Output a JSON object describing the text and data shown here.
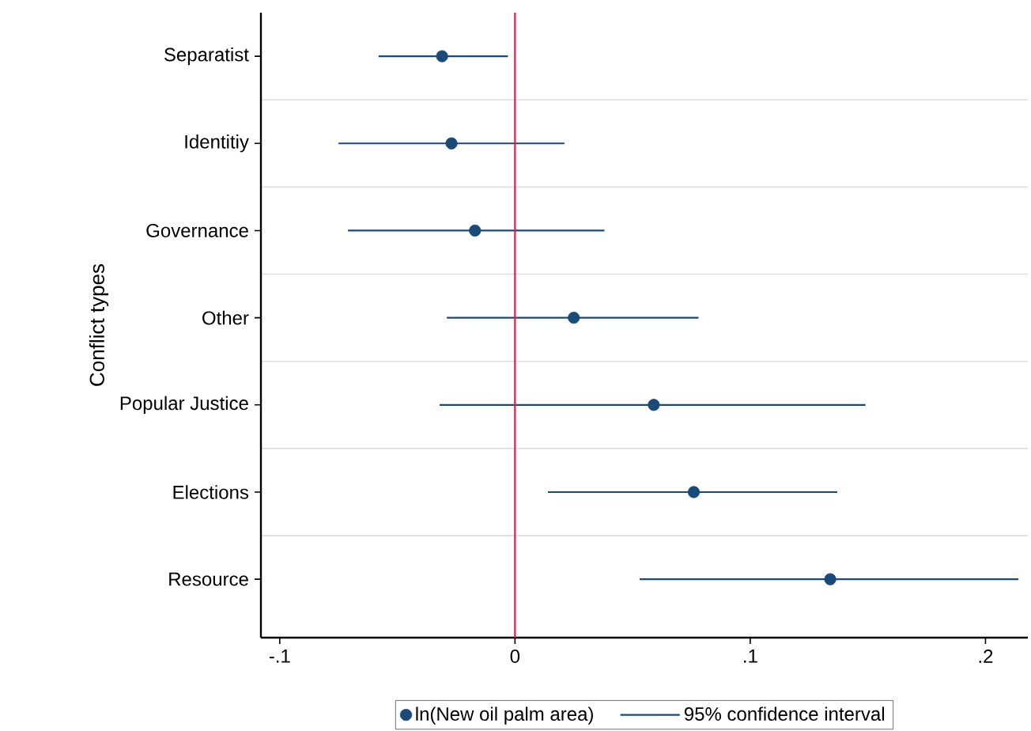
{
  "chart_data": {
    "type": "scatter",
    "orientation": "horizontal",
    "ylabel": "Conflict types",
    "categories": [
      "Separatist",
      "Identitiy",
      "Governance",
      "Other",
      "Popular Justice",
      "Elections",
      "Resource"
    ],
    "series": [
      {
        "name": "ln(New oil palm area)",
        "color": "#1a4a7a",
        "values": [
          -0.031,
          -0.027,
          -0.017,
          0.025,
          0.059,
          0.076,
          0.134
        ],
        "errors": [
          [
            -0.058,
            -0.003
          ],
          [
            -0.075,
            0.021
          ],
          [
            -0.071,
            0.038
          ],
          [
            -0.029,
            0.078
          ],
          [
            -0.032,
            0.149
          ],
          [
            0.014,
            0.137
          ],
          [
            0.053,
            0.214
          ]
        ]
      }
    ],
    "annotations": [
      "95% confidence interval"
    ],
    "xlim": [
      -0.108,
      0.218
    ],
    "xticks": [
      {
        "value": -0.1,
        "label": "-.1"
      },
      {
        "value": 0,
        "label": "0"
      },
      {
        "value": 0.1,
        "label": ".1"
      },
      {
        "value": 0.2,
        "label": ".2"
      }
    ],
    "ref_lines": [
      {
        "axis": "x",
        "value": 0,
        "color": "#d81e4a"
      }
    ],
    "grid": "y",
    "legend": "bottom"
  }
}
